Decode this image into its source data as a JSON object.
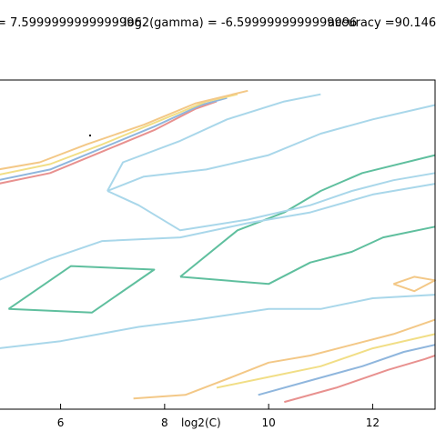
{
  "header": {
    "log2c_readout": "= 7.5999999999999996",
    "log2gamma_readout": "log2(gamma) = -6.5999999999999996",
    "accuracy_readout": "accuracy =90.146"
  },
  "chart_data": {
    "type": "contour",
    "title": "",
    "xlabel": "log2(C)",
    "ylabel": "",
    "xlim": [
      4.8,
      13.2
    ],
    "ylim": [
      -9.7,
      -0.5
    ],
    "x_ticks": [
      6,
      8,
      10,
      12
    ],
    "x_tick_labels": [
      "6",
      "8",
      "10",
      "12"
    ],
    "grid": false,
    "legend": "none",
    "series": [
      {
        "color": "#e8918f",
        "lines": [
          [
            [
              4.8,
              -3.4
            ],
            [
              5.8,
              -3.1
            ],
            [
              6.8,
              -2.5
            ],
            [
              7.8,
              -1.9
            ],
            [
              8.6,
              -1.3
            ],
            [
              9.0,
              -1.1
            ]
          ],
          [
            [
              10.3,
              -9.5
            ],
            [
              11.3,
              -9.1
            ],
            [
              12.3,
              -8.6
            ],
            [
              13.0,
              -8.3
            ],
            [
              13.2,
              -8.2
            ]
          ]
        ]
      },
      {
        "color": "#8fb6dd",
        "lines": [
          [
            [
              4.8,
              -3.3
            ],
            [
              5.8,
              -3.0
            ],
            [
              6.8,
              -2.4
            ],
            [
              7.8,
              -1.8
            ],
            [
              8.7,
              -1.2
            ],
            [
              9.2,
              -1.0
            ]
          ],
          [
            [
              9.8,
              -9.3
            ],
            [
              10.8,
              -8.9
            ],
            [
              11.8,
              -8.5
            ],
            [
              12.6,
              -8.1
            ],
            [
              13.2,
              -7.9
            ]
          ]
        ]
      },
      {
        "color": "#f1de86",
        "lines": [
          [
            [
              4.8,
              -3.15
            ],
            [
              5.8,
              -2.85
            ],
            [
              6.8,
              -2.3
            ],
            [
              7.8,
              -1.7
            ],
            [
              8.8,
              -1.1
            ],
            [
              9.4,
              -0.9
            ]
          ],
          [
            [
              9.0,
              -9.1
            ],
            [
              10.0,
              -8.8
            ],
            [
              11.0,
              -8.5
            ],
            [
              12.0,
              -8.0
            ],
            [
              13.2,
              -7.6
            ]
          ]
        ]
      },
      {
        "color": "#f3c887",
        "lines": [
          [
            [
              4.8,
              -3.0
            ],
            [
              5.6,
              -2.8
            ],
            [
              6.5,
              -2.3
            ],
            [
              7.6,
              -1.75
            ],
            [
              8.6,
              -1.15
            ],
            [
              9.6,
              -0.8
            ]
          ],
          [
            [
              7.4,
              -9.4
            ],
            [
              8.4,
              -9.3
            ],
            [
              9.3,
              -8.8
            ],
            [
              10.0,
              -8.4
            ],
            [
              10.8,
              -8.2
            ],
            [
              11.6,
              -7.9
            ],
            [
              12.4,
              -7.6
            ],
            [
              13.2,
              -7.2
            ]
          ],
          [
            [
              12.4,
              -6.2
            ],
            [
              12.8,
              -6.0
            ],
            [
              13.2,
              -6.1
            ],
            [
              12.8,
              -6.4
            ],
            [
              12.4,
              -6.2
            ]
          ]
        ]
      },
      {
        "color": "#5fbf9e",
        "lines": [
          [
            [
              5.0,
              -6.9
            ],
            [
              6.2,
              -5.7
            ],
            [
              7.8,
              -5.8
            ],
            [
              6.6,
              -7.0
            ],
            [
              5.0,
              -6.9
            ]
          ],
          [
            [
              8.3,
              -6.0
            ],
            [
              9.4,
              -4.7
            ],
            [
              10.3,
              -4.2
            ],
            [
              11.0,
              -3.6
            ],
            [
              11.8,
              -3.1
            ],
            [
              13.2,
              -2.6
            ]
          ],
          [
            [
              8.3,
              -6.0
            ],
            [
              10.0,
              -6.2
            ],
            [
              10.8,
              -5.6
            ],
            [
              11.6,
              -5.3
            ],
            [
              12.2,
              -4.9
            ],
            [
              13.2,
              -4.6
            ]
          ]
        ]
      },
      {
        "color": "#a9d7ea",
        "lines": [
          [
            [
              6.9,
              -3.6
            ],
            [
              7.6,
              -3.2
            ],
            [
              8.8,
              -3.0
            ],
            [
              10.0,
              -2.6
            ],
            [
              11.0,
              -2.0
            ],
            [
              12.0,
              -1.6
            ],
            [
              13.2,
              -1.2
            ]
          ],
          [
            [
              6.9,
              -3.6
            ],
            [
              7.5,
              -4.0
            ],
            [
              8.3,
              -4.7
            ],
            [
              9.6,
              -4.4
            ],
            [
              10.8,
              -4.0
            ],
            [
              11.6,
              -3.6
            ],
            [
              12.4,
              -3.3
            ],
            [
              13.2,
              -3.1
            ]
          ],
          [
            [
              4.8,
              -6.1
            ],
            [
              5.8,
              -5.5
            ],
            [
              6.8,
              -5.0
            ],
            [
              8.3,
              -4.9
            ],
            [
              9.6,
              -4.5
            ],
            [
              10.8,
              -4.2
            ],
            [
              12.0,
              -3.7
            ],
            [
              13.2,
              -3.4
            ]
          ],
          [
            [
              4.8,
              -8.0
            ],
            [
              6.0,
              -7.8
            ],
            [
              7.5,
              -7.4
            ],
            [
              8.6,
              -7.2
            ],
            [
              10.0,
              -6.9
            ],
            [
              11.0,
              -6.9
            ],
            [
              12.0,
              -6.6
            ],
            [
              13.2,
              -6.5
            ]
          ],
          [
            [
              6.9,
              -3.6
            ],
            [
              7.2,
              -2.8
            ],
            [
              8.3,
              -2.2
            ],
            [
              9.2,
              -1.6
            ],
            [
              10.3,
              -1.1
            ],
            [
              11.0,
              -0.9
            ]
          ]
        ]
      }
    ]
  }
}
